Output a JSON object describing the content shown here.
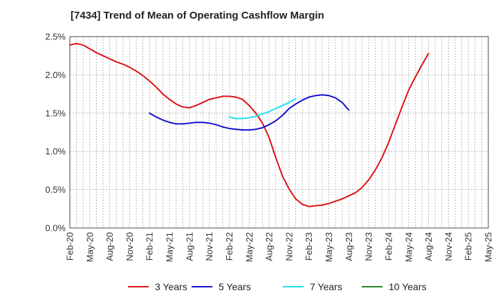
{
  "chart_data": {
    "type": "line",
    "title": "[7434]  Trend of Mean of Operating Cashflow Margin",
    "xlabel": "",
    "ylabel": "",
    "ylim": [
      0,
      2.5
    ],
    "yticks": [
      "0.0%",
      "0.5%",
      "1.0%",
      "1.5%",
      "2.0%",
      "2.5%"
    ],
    "xticks": [
      "Feb-20",
      "May-20",
      "Aug-20",
      "Nov-20",
      "Feb-21",
      "May-21",
      "Aug-21",
      "Nov-21",
      "Feb-22",
      "May-22",
      "Aug-22",
      "Nov-22",
      "Feb-23",
      "May-23",
      "Aug-23",
      "Nov-23",
      "Feb-24",
      "May-24",
      "Aug-24",
      "Nov-24",
      "Feb-25",
      "May-25"
    ],
    "grid": true,
    "legend_position": "bottom",
    "series": [
      {
        "name": "3 Years",
        "color": "#dd1111",
        "points": [
          [
            "Feb-20",
            2.39
          ],
          [
            "Mar-20",
            2.41
          ],
          [
            "Apr-20",
            2.39
          ],
          [
            "May-20",
            2.34
          ],
          [
            "Jun-20",
            2.29
          ],
          [
            "Jul-20",
            2.25
          ],
          [
            "Aug-20",
            2.21
          ],
          [
            "Sep-20",
            2.17
          ],
          [
            "Oct-20",
            2.14
          ],
          [
            "Nov-20",
            2.1
          ],
          [
            "Dec-20",
            2.05
          ],
          [
            "Jan-21",
            1.99
          ],
          [
            "Feb-21",
            1.92
          ],
          [
            "Mar-21",
            1.84
          ],
          [
            "Apr-21",
            1.75
          ],
          [
            "May-21",
            1.68
          ],
          [
            "Jun-21",
            1.62
          ],
          [
            "Jul-21",
            1.58
          ],
          [
            "Aug-21",
            1.57
          ],
          [
            "Sep-21",
            1.6
          ],
          [
            "Oct-21",
            1.64
          ],
          [
            "Nov-21",
            1.68
          ],
          [
            "Dec-21",
            1.7
          ],
          [
            "Jan-22",
            1.72
          ],
          [
            "Feb-22",
            1.72
          ],
          [
            "Mar-22",
            1.71
          ],
          [
            "Apr-22",
            1.68
          ],
          [
            "May-22",
            1.6
          ],
          [
            "Jun-22",
            1.5
          ],
          [
            "Jul-22",
            1.37
          ],
          [
            "Aug-22",
            1.18
          ],
          [
            "Sep-22",
            0.92
          ],
          [
            "Oct-22",
            0.68
          ],
          [
            "Nov-22",
            0.51
          ],
          [
            "Dec-22",
            0.38
          ],
          [
            "Jan-23",
            0.31
          ],
          [
            "Feb-23",
            0.28
          ],
          [
            "Mar-23",
            0.29
          ],
          [
            "Apr-23",
            0.3
          ],
          [
            "May-23",
            0.32
          ],
          [
            "Jun-23",
            0.35
          ],
          [
            "Jul-23",
            0.38
          ],
          [
            "Aug-23",
            0.42
          ],
          [
            "Sep-23",
            0.46
          ],
          [
            "Oct-23",
            0.53
          ],
          [
            "Nov-23",
            0.63
          ],
          [
            "Dec-23",
            0.76
          ],
          [
            "Jan-24",
            0.92
          ],
          [
            "Feb-24",
            1.12
          ],
          [
            "Mar-24",
            1.35
          ],
          [
            "Apr-24",
            1.58
          ],
          [
            "May-24",
            1.8
          ],
          [
            "Jun-24",
            1.97
          ],
          [
            "Jul-24",
            2.13
          ],
          [
            "Aug-24",
            2.28
          ]
        ]
      },
      {
        "name": "5 Years",
        "color": "#1111cc",
        "points": [
          [
            "Feb-21",
            1.5
          ],
          [
            "Mar-21",
            1.45
          ],
          [
            "Apr-21",
            1.41
          ],
          [
            "May-21",
            1.38
          ],
          [
            "Jun-21",
            1.36
          ],
          [
            "Jul-21",
            1.36
          ],
          [
            "Aug-21",
            1.37
          ],
          [
            "Sep-21",
            1.38
          ],
          [
            "Oct-21",
            1.38
          ],
          [
            "Nov-21",
            1.37
          ],
          [
            "Dec-21",
            1.35
          ],
          [
            "Jan-22",
            1.32
          ],
          [
            "Feb-22",
            1.3
          ],
          [
            "Mar-22",
            1.29
          ],
          [
            "Apr-22",
            1.28
          ],
          [
            "May-22",
            1.28
          ],
          [
            "Jun-22",
            1.29
          ],
          [
            "Jul-22",
            1.31
          ],
          [
            "Aug-22",
            1.35
          ],
          [
            "Sep-22",
            1.4
          ],
          [
            "Oct-22",
            1.47
          ],
          [
            "Nov-22",
            1.56
          ],
          [
            "Dec-22",
            1.62
          ],
          [
            "Jan-23",
            1.67
          ],
          [
            "Feb-23",
            1.71
          ],
          [
            "Mar-23",
            1.73
          ],
          [
            "Apr-23",
            1.74
          ],
          [
            "May-23",
            1.73
          ],
          [
            "Jun-23",
            1.7
          ],
          [
            "Jul-23",
            1.64
          ],
          [
            "Aug-23",
            1.54
          ]
        ]
      },
      {
        "name": "7 Years",
        "color": "#22e0f0",
        "points": [
          [
            "Feb-22",
            1.45
          ],
          [
            "Mar-22",
            1.43
          ],
          [
            "Apr-22",
            1.43
          ],
          [
            "May-22",
            1.44
          ],
          [
            "Jun-22",
            1.46
          ],
          [
            "Jul-22",
            1.49
          ],
          [
            "Aug-22",
            1.52
          ],
          [
            "Sep-22",
            1.56
          ],
          [
            "Oct-22",
            1.6
          ],
          [
            "Nov-22",
            1.64
          ],
          [
            "Dec-22",
            1.69
          ]
        ]
      },
      {
        "name": "10 Years",
        "color": "#228822",
        "points": []
      }
    ]
  }
}
